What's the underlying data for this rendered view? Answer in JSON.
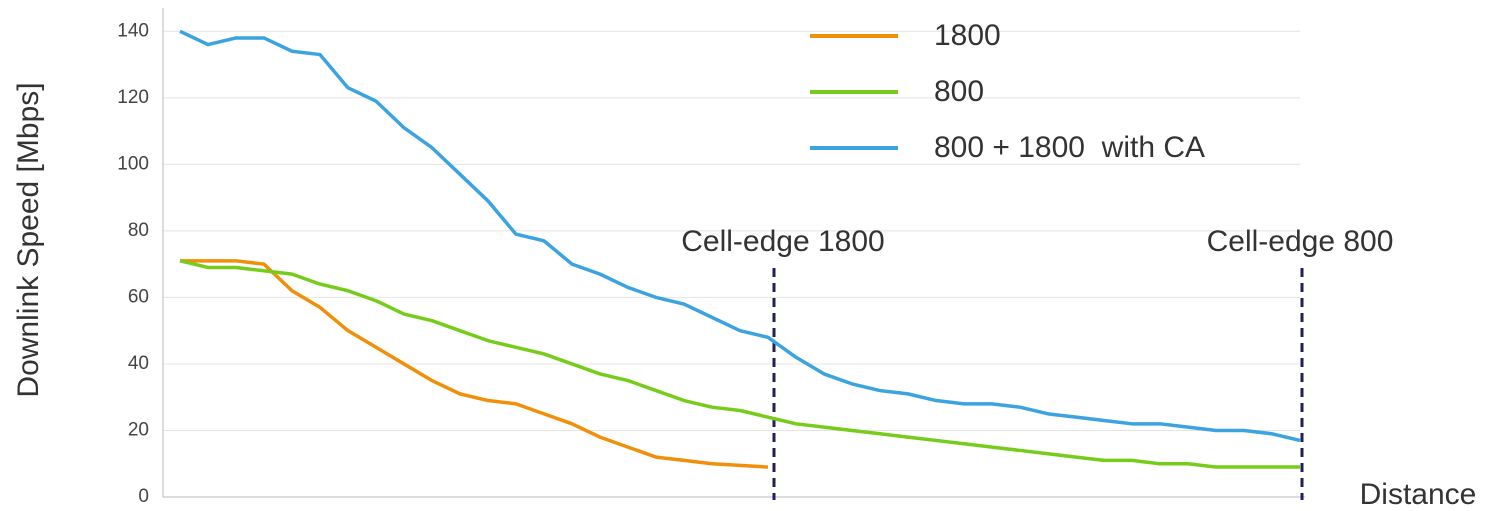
{
  "chart_data": {
    "type": "line",
    "y_label": "Downlink Speed [Mbps]",
    "x_label": "Distance",
    "categories": [
      null,
      null,
      null,
      null,
      null,
      null,
      null,
      null,
      null,
      null,
      null,
      null,
      null,
      null,
      null,
      null,
      null,
      null,
      null,
      null,
      null,
      null,
      null,
      null,
      null,
      null,
      null,
      null,
      null,
      null,
      null,
      null,
      null,
      null,
      null,
      null,
      null,
      null,
      null,
      null,
      null
    ],
    "series": [
      {
        "name": "1800",
        "color": "#f0900a",
        "values": [
          71,
          71,
          71,
          70,
          62,
          57,
          50,
          45,
          40,
          35,
          31,
          29,
          28,
          25,
          22,
          18,
          15,
          12,
          11,
          10,
          9.5,
          9,
          null,
          null,
          null,
          null,
          null,
          null,
          null,
          null,
          null,
          null,
          null,
          null,
          null,
          null,
          null,
          null,
          null,
          null,
          null
        ]
      },
      {
        "name": "800",
        "color": "#76cc1a",
        "values": [
          71,
          69,
          69,
          68,
          67,
          64,
          62,
          59,
          55,
          53,
          50,
          47,
          45,
          43,
          40,
          37,
          35,
          32,
          29,
          27,
          26,
          24,
          22,
          21,
          20,
          19,
          18,
          17,
          16,
          15,
          14,
          13,
          12,
          11,
          11,
          10,
          10,
          9,
          9,
          9,
          9
        ]
      },
      {
        "name": "800 + 1800  with CA",
        "color": "#3aa3e0",
        "values": [
          140,
          136,
          138,
          138,
          134,
          133,
          123,
          119,
          111,
          105,
          97,
          89,
          79,
          77,
          70,
          67,
          63,
          60,
          58,
          54,
          50,
          48,
          42,
          37,
          34,
          32,
          31,
          29,
          28,
          28,
          27,
          25,
          24,
          23,
          22,
          22,
          21,
          20,
          20,
          19,
          17
        ]
      }
    ],
    "annotations": [
      "Cell-edge 1800",
      "Cell-edge 800"
    ],
    "ylim": [
      0,
      147
    ],
    "yticks": [
      0,
      20,
      40,
      60,
      80,
      100,
      120,
      140
    ],
    "grid": true,
    "legend": "upper right"
  }
}
